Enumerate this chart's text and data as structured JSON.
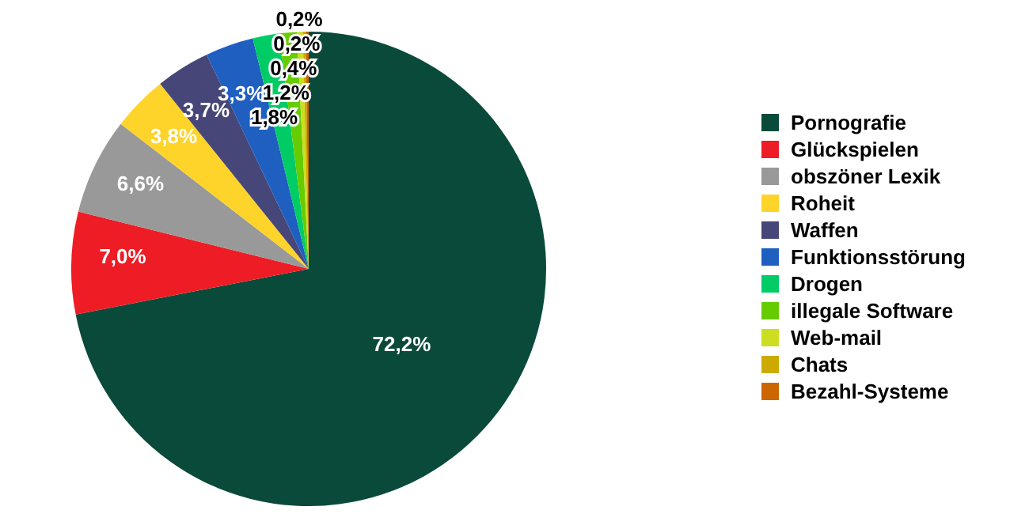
{
  "chart_data": {
    "type": "pie",
    "categories": [
      "Pornografie",
      "Glückspielen",
      "obszöner Lexik",
      "Roheit",
      "Waffen",
      "Funktionsstörung",
      "Drogen",
      "illegale Software",
      "Web-mail",
      "Chats",
      "Bezahl-Systeme"
    ],
    "values": [
      72.2,
      7.0,
      6.6,
      3.8,
      3.7,
      3.3,
      1.8,
      1.2,
      0.4,
      0.2,
      0.2
    ],
    "value_labels": [
      "72,2%",
      "7,0%",
      "6,6%",
      "3,8%",
      "3,7%",
      "3,3%",
      "1,8%",
      "1,2%",
      "0,4%",
      "0,2%",
      "0,2%"
    ],
    "colors": [
      "#0a4a3a",
      "#ee1c25",
      "#999999",
      "#ffd42a",
      "#464678",
      "#1f5fc0",
      "#00cc66",
      "#66cc00",
      "#ccdd22",
      "#ccaa00",
      "#cc6600"
    ],
    "legend": "right"
  }
}
